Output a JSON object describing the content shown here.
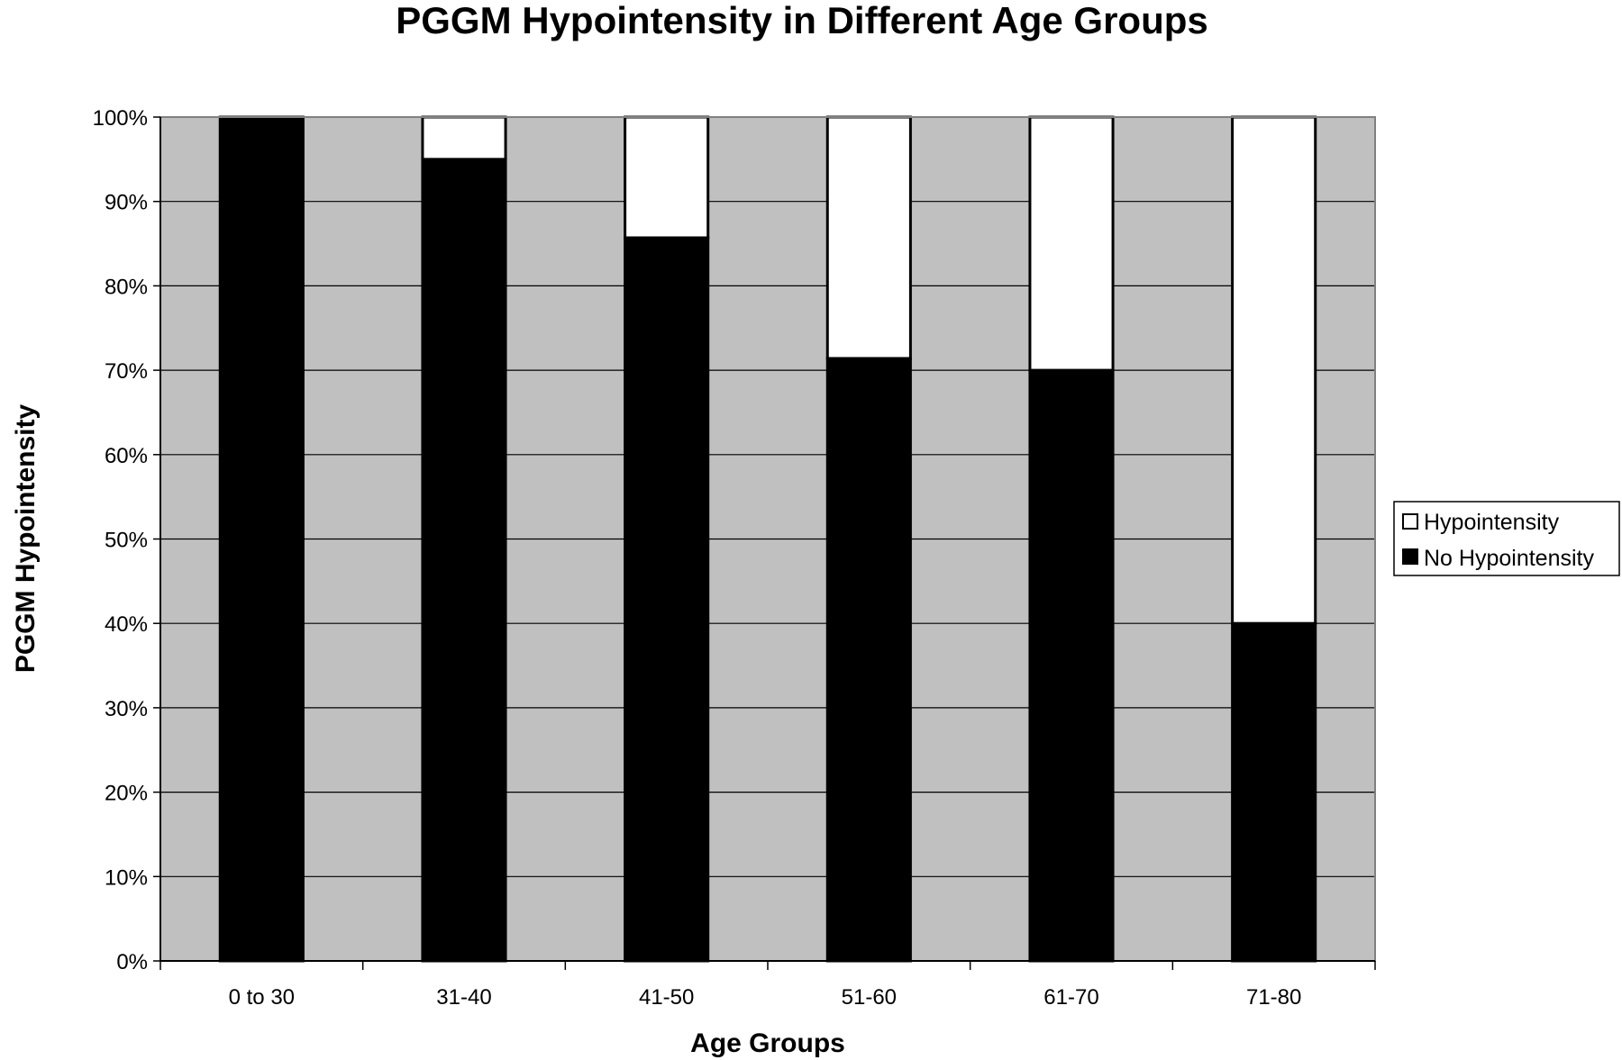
{
  "chart_data": {
    "type": "bar",
    "stacked": true,
    "percent_stacked": true,
    "title": "PGGM Hypointensity in Different Age Groups",
    "xlabel": "Age Groups",
    "ylabel": "PGGM Hypointensity",
    "categories": [
      "0 to 30",
      "31-40",
      "41-50",
      "51-60",
      "61-70",
      "71-80"
    ],
    "series": [
      {
        "name": "No Hypointensity",
        "color": "#000000",
        "values": [
          100,
          95,
          85.7,
          71.4,
          70,
          40
        ]
      },
      {
        "name": "Hypointensity",
        "color": "#ffffff",
        "values": [
          0,
          5,
          14.3,
          28.6,
          30,
          60
        ]
      }
    ],
    "ylim": [
      0,
      100
    ],
    "yticks": [
      "0%",
      "10%",
      "20%",
      "30%",
      "40%",
      "50%",
      "60%",
      "70%",
      "80%",
      "90%",
      "100%"
    ],
    "grid": true,
    "plot_background": "#c0c0c0",
    "legend": {
      "position": "right",
      "entries": [
        "Hypointensity",
        "No Hypointensity"
      ]
    }
  }
}
